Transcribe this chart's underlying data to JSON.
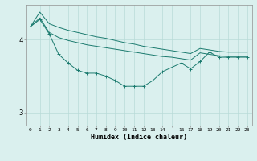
{
  "xlabel": "Humidex (Indice chaleur)",
  "bg_color": "#daf0ee",
  "grid_color": "#b8dbd8",
  "line_color": "#1a7a6e",
  "line1_x": [
    0,
    1,
    2,
    3,
    4,
    5,
    6,
    7,
    8,
    9,
    10,
    11,
    12,
    13,
    14,
    16,
    17,
    18,
    19,
    20,
    21,
    22,
    23
  ],
  "line1_y": [
    4.18,
    4.28,
    4.08,
    3.8,
    3.68,
    3.58,
    3.54,
    3.54,
    3.5,
    3.44,
    3.36,
    3.36,
    3.36,
    3.44,
    3.56,
    3.68,
    3.6,
    3.7,
    3.83,
    3.76,
    3.76,
    3.76,
    3.76
  ],
  "line2_x": [
    0,
    1,
    2,
    3,
    4,
    5,
    6,
    7,
    8,
    9,
    10,
    11,
    12,
    13,
    14,
    15,
    16,
    17,
    18,
    19,
    20,
    21,
    22,
    23
  ],
  "line2_y": [
    4.18,
    4.3,
    4.1,
    4.03,
    3.99,
    3.96,
    3.93,
    3.91,
    3.89,
    3.87,
    3.85,
    3.83,
    3.81,
    3.79,
    3.77,
    3.76,
    3.74,
    3.72,
    3.82,
    3.8,
    3.78,
    3.77,
    3.77,
    3.77
  ],
  "line3_x": [
    0,
    1,
    2,
    3,
    4,
    5,
    6,
    7,
    8,
    9,
    10,
    11,
    12,
    13,
    14,
    15,
    16,
    17,
    18,
    19,
    20,
    21,
    22,
    23
  ],
  "line3_y": [
    4.18,
    4.38,
    4.22,
    4.17,
    4.13,
    4.1,
    4.07,
    4.04,
    4.02,
    3.99,
    3.96,
    3.94,
    3.91,
    3.89,
    3.87,
    3.85,
    3.83,
    3.81,
    3.88,
    3.86,
    3.84,
    3.83,
    3.83,
    3.83
  ],
  "ylim": [
    2.82,
    4.48
  ],
  "xlim": [
    -0.5,
    23.5
  ],
  "yticks": [
    3,
    4
  ],
  "xtick_labels": [
    "0",
    "1",
    "2",
    "3",
    "4",
    "5",
    "6",
    "7",
    "8",
    "9",
    "10",
    "11",
    "12",
    "13",
    "14",
    "",
    "16",
    "17",
    "18",
    "19",
    "20",
    "21",
    "22",
    "23"
  ],
  "xtick_positions": [
    0,
    1,
    2,
    3,
    4,
    5,
    6,
    7,
    8,
    9,
    10,
    11,
    12,
    13,
    14,
    15,
    16,
    17,
    18,
    19,
    20,
    21,
    22,
    23
  ]
}
